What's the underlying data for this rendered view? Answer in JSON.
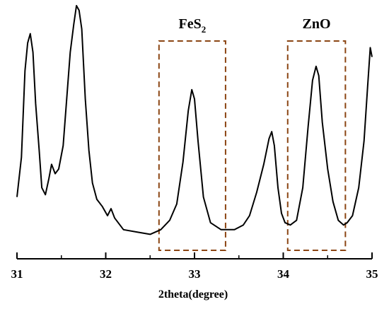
{
  "chart_data": {
    "type": "line",
    "title": "",
    "xlabel": "2theta(degree)",
    "ylabel": "",
    "xlim": [
      31,
      35
    ],
    "x_ticks": [
      "31",
      "32",
      "33",
      "34",
      "35"
    ],
    "y_axis_visible": false,
    "grid": false,
    "legend": "none",
    "series": [
      {
        "color": "#000000",
        "points": [
          [
            31.0,
            0.18
          ],
          [
            31.05,
            0.35
          ],
          [
            31.09,
            0.72
          ],
          [
            31.12,
            0.84
          ],
          [
            31.15,
            0.88
          ],
          [
            31.18,
            0.8
          ],
          [
            31.21,
            0.58
          ],
          [
            31.25,
            0.38
          ],
          [
            31.28,
            0.22
          ],
          [
            31.32,
            0.19
          ],
          [
            31.36,
            0.26
          ],
          [
            31.39,
            0.32
          ],
          [
            31.43,
            0.28
          ],
          [
            31.47,
            0.3
          ],
          [
            31.52,
            0.4
          ],
          [
            31.56,
            0.6
          ],
          [
            31.6,
            0.8
          ],
          [
            31.64,
            0.92
          ],
          [
            31.67,
            1.0
          ],
          [
            31.7,
            0.98
          ],
          [
            31.73,
            0.9
          ],
          [
            31.77,
            0.6
          ],
          [
            31.81,
            0.38
          ],
          [
            31.85,
            0.24
          ],
          [
            31.9,
            0.17
          ],
          [
            31.96,
            0.14
          ],
          [
            32.02,
            0.1
          ],
          [
            32.06,
            0.13
          ],
          [
            32.1,
            0.09
          ],
          [
            32.2,
            0.04
          ],
          [
            32.35,
            0.03
          ],
          [
            32.5,
            0.02
          ],
          [
            32.62,
            0.04
          ],
          [
            32.72,
            0.08
          ],
          [
            32.8,
            0.15
          ],
          [
            32.87,
            0.33
          ],
          [
            32.93,
            0.55
          ],
          [
            32.97,
            0.64
          ],
          [
            33.0,
            0.6
          ],
          [
            33.04,
            0.42
          ],
          [
            33.1,
            0.18
          ],
          [
            33.18,
            0.07
          ],
          [
            33.3,
            0.04
          ],
          [
            33.45,
            0.04
          ],
          [
            33.55,
            0.06
          ],
          [
            33.62,
            0.1
          ],
          [
            33.7,
            0.2
          ],
          [
            33.78,
            0.32
          ],
          [
            33.84,
            0.43
          ],
          [
            33.87,
            0.46
          ],
          [
            33.9,
            0.4
          ],
          [
            33.94,
            0.22
          ],
          [
            33.98,
            0.11
          ],
          [
            34.02,
            0.07
          ],
          [
            34.08,
            0.06
          ],
          [
            34.15,
            0.08
          ],
          [
            34.22,
            0.22
          ],
          [
            34.28,
            0.48
          ],
          [
            34.33,
            0.68
          ],
          [
            34.37,
            0.74
          ],
          [
            34.4,
            0.7
          ],
          [
            34.44,
            0.5
          ],
          [
            34.5,
            0.3
          ],
          [
            34.56,
            0.16
          ],
          [
            34.62,
            0.08
          ],
          [
            34.68,
            0.06
          ],
          [
            34.72,
            0.07
          ],
          [
            34.78,
            0.1
          ],
          [
            34.85,
            0.22
          ],
          [
            34.91,
            0.42
          ],
          [
            34.95,
            0.65
          ],
          [
            34.98,
            0.82
          ],
          [
            35.0,
            0.78
          ]
        ]
      }
    ],
    "annotations": [
      {
        "text": "FeS",
        "subscript": "2",
        "x_range": [
          32.6,
          33.35
        ],
        "style": "dashed-box",
        "color": "#8B4513"
      },
      {
        "text": "ZnO",
        "subscript": "",
        "x_range": [
          34.05,
          34.7
        ],
        "style": "dashed-box",
        "color": "#8B4513"
      }
    ]
  }
}
